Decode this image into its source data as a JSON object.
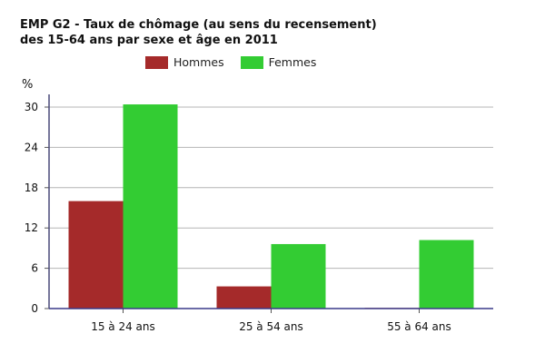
{
  "chart_data": {
    "type": "bar",
    "title_line1": "EMP G2 - Taux de chômage (au sens du recensement)",
    "title_line2": "des 15-64 ans par sexe et âge en 2011",
    "ylabel": "%",
    "categories": [
      "15 à 24 ans",
      "25 à 54 ans",
      "55 à 64 ans"
    ],
    "series": [
      {
        "name": "Hommes",
        "values": [
          16.0,
          3.3,
          0.1
        ],
        "color": "#a52a2a"
      },
      {
        "name": "Femmes",
        "values": [
          30.4,
          9.6,
          10.2
        ],
        "color": "#33cc33"
      }
    ],
    "ylim": [
      0,
      30
    ],
    "yticks": [
      "0",
      "6",
      "12",
      "18",
      "24",
      "30"
    ],
    "grid": true,
    "legend_position": "top"
  }
}
